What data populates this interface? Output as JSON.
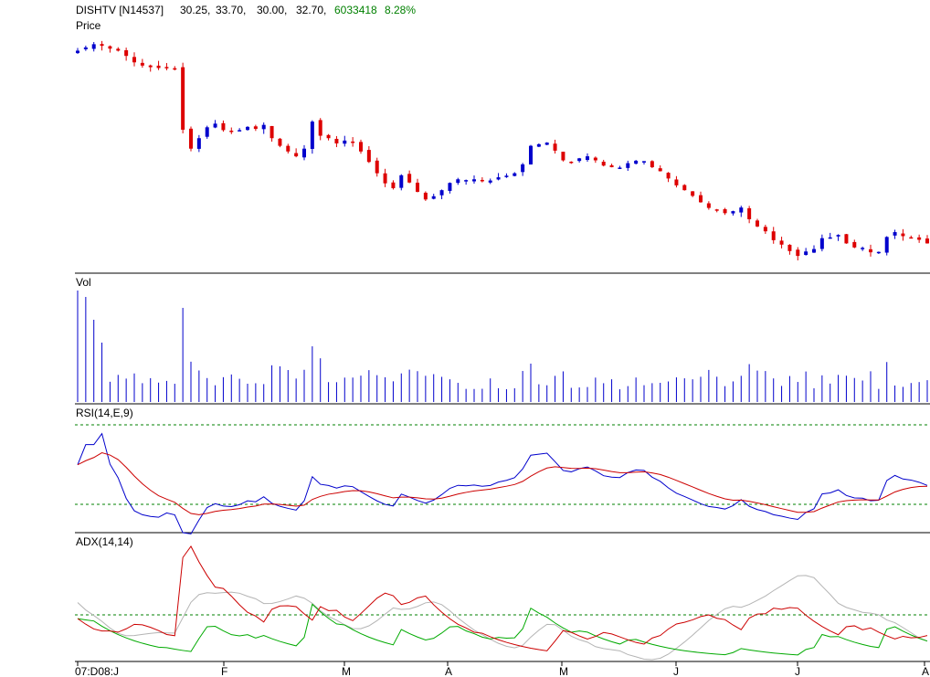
{
  "header": {
    "symbol": "DISHTV [N14537]",
    "open": "30.25,",
    "high": "33.70,",
    "low": "30.00,",
    "close": "32.70,",
    "volume": "6033418",
    "change": "8.28%"
  },
  "panels": {
    "price_label": "Price",
    "vol_label": "Vol",
    "rsi_label": "RSI(14,E,9)",
    "adx_label": "ADX(14,14)"
  },
  "xaxis": {
    "labels": [
      "07:D08:J",
      "F",
      "M",
      "A",
      "M",
      "J",
      "J",
      "A"
    ]
  },
  "colors": {
    "up": "#0000cc",
    "down": "#dd0000",
    "rsi": "#0000cc",
    "rsi_signal": "#cc0000",
    "adx": "#b4b4b4",
    "plus_di": "#00aa00",
    "minus_di": "#cc0000",
    "ref_line": "#008000",
    "change_text": "#008000"
  },
  "chart_data": [
    {
      "type": "candlestick",
      "title": "Price",
      "ohlc_close_approx": [
        80.5,
        81.3,
        82.1,
        81.7,
        81,
        80.5,
        79.2,
        77.6,
        76.8,
        76.4,
        76.2,
        76.4,
        76,
        60.9,
        56.2,
        58.8,
        61.5,
        62.4,
        60.8,
        60.4,
        60.8,
        61.6,
        61.1,
        62.1,
        58.8,
        56.9,
        55.5,
        54.3,
        56.2,
        62.9,
        59.4,
        58.8,
        57.5,
        58.2,
        57.8,
        55.5,
        52.9,
        50.1,
        47.6,
        46.4,
        49.6,
        47.8,
        45.5,
        43.6,
        44.4,
        45.9,
        47.7,
        48.6,
        48.4,
        48.6,
        48.1,
        48.3,
        49.1,
        49.5,
        50.1,
        52.3,
        56.9,
        57.3,
        57.7,
        55.7,
        53.3,
        52.9,
        53.8,
        54.3,
        53.3,
        52,
        51.6,
        51.5,
        52.6,
        53.2,
        53.1,
        51.6,
        50.6,
        48.8,
        47.1,
        45.9,
        44.5,
        42.9,
        41.5,
        41,
        40.2,
        40.7,
        41.6,
        38.7,
        36.9,
        35.7,
        33.5,
        32.4,
        30.8,
        29.6,
        30.7,
        31.3,
        34,
        34.2,
        34.8,
        32.7,
        31.7,
        31.6,
        30.5,
        30.6,
        34.3,
        35.5,
        34.5,
        34.2,
        33.6,
        32.7
      ]
    },
    {
      "type": "bar",
      "title": "Vol"
    },
    {
      "type": "line",
      "title": "RSI(14,E,9)",
      "reference_lines": [
        70,
        30
      ]
    },
    {
      "type": "line",
      "title": "ADX(14,14)",
      "series": []
    }
  ]
}
